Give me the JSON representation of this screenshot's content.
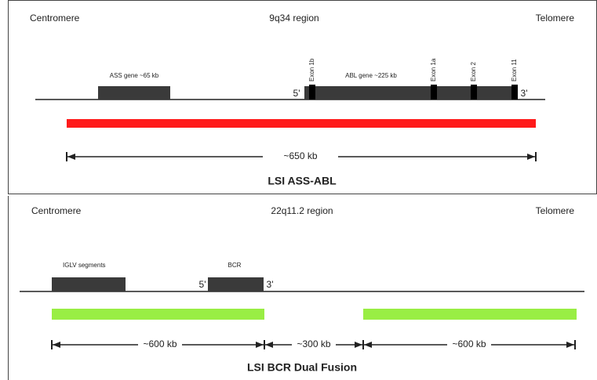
{
  "panels": [
    {
      "left_label": "Centromere",
      "region": "9q34 region",
      "right_label": "Telomere",
      "genes": [
        "ASS gene ~65 kb",
        "ABL gene ~225 kb"
      ],
      "exons": [
        "Exon 1b",
        "Exon 1a",
        "Exon 2",
        "Exon 11"
      ],
      "five_prime": "5'",
      "three_prime": "3'",
      "spans": [
        "~650 kb"
      ],
      "probe_name": "LSI ASS-ABL"
    },
    {
      "left_label": "Centromere",
      "region": "22q11.2 region",
      "right_label": "Telomere",
      "genes": [
        "IGLV segments",
        "BCR"
      ],
      "five_prime": "5'",
      "three_prime": "3'",
      "spans": [
        "~600 kb",
        "~300 kb",
        "~600 kb"
      ],
      "probe_name": "LSI BCR Dual Fusion"
    }
  ]
}
